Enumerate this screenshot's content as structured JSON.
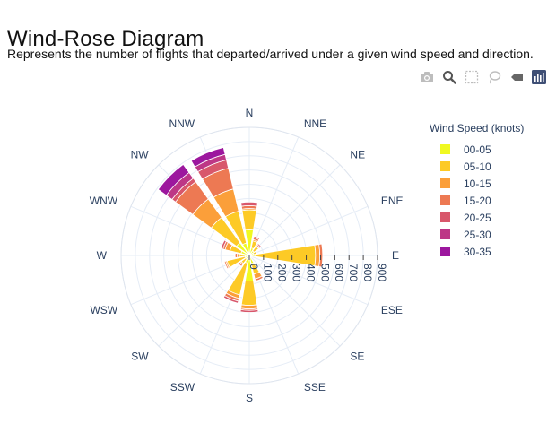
{
  "page": {
    "title": "Wind-Rose Diagram",
    "subtitle": "Represents the number of flights that departed/arrived under a given wind speed and direction."
  },
  "modebar": {
    "buttons": [
      {
        "icon": "camera-icon",
        "active": false
      },
      {
        "icon": "zoom-icon",
        "active": false
      },
      {
        "icon": "box-select-icon",
        "active": false
      },
      {
        "icon": "lasso-icon",
        "active": false
      },
      {
        "icon": "eraser-icon",
        "active": false
      },
      {
        "icon": "plotly-logo-icon",
        "active": true
      }
    ]
  },
  "chart_data": {
    "type": "barpolar",
    "directions": [
      "N",
      "NNE",
      "NE",
      "ENE",
      "E",
      "ESE",
      "SE",
      "SSE",
      "S",
      "SSW",
      "SW",
      "WSW",
      "W",
      "WNW",
      "NW",
      "NNW"
    ],
    "radial_ticks": [
      0,
      100,
      200,
      300,
      400,
      500,
      600,
      700,
      800,
      900
    ],
    "radial_range": [
      0,
      900
    ],
    "legend_title": "Wind Speed (knots)",
    "series": [
      {
        "name": "00-05",
        "color": "#f0f921",
        "values": [
          180,
          55,
          40,
          30,
          45,
          15,
          10,
          60,
          180,
          55,
          30,
          30,
          30,
          60,
          110,
          90
        ]
      },
      {
        "name": "05-10",
        "color": "#fdca26",
        "values": [
          140,
          50,
          40,
          25,
          420,
          10,
          10,
          75,
          170,
          230,
          40,
          130,
          40,
          80,
          220,
          230
        ]
      },
      {
        "name": "10-15",
        "color": "#fb9f3a",
        "values": [
          10,
          10,
          5,
          0,
          30,
          0,
          0,
          35,
          25,
          25,
          10,
          10,
          15,
          35,
          160,
          160
        ]
      },
      {
        "name": "15-20",
        "color": "#ed7953",
        "values": [
          20,
          15,
          10,
          0,
          20,
          0,
          0,
          15,
          10,
          20,
          15,
          10,
          15,
          15,
          150,
          150
        ]
      },
      {
        "name": "20-25",
        "color": "#d8576b",
        "values": [
          25,
          10,
          10,
          0,
          0,
          0,
          0,
          5,
          15,
          15,
          5,
          0,
          5,
          15,
          30,
          60
        ]
      },
      {
        "name": "25-30",
        "color": "#bd3786",
        "values": [
          0,
          0,
          0,
          0,
          0,
          0,
          0,
          0,
          0,
          0,
          0,
          0,
          0,
          0,
          50,
          40
        ]
      },
      {
        "name": "30-35",
        "color": "#9c179e",
        "values": [
          0,
          0,
          0,
          0,
          0,
          0,
          0,
          0,
          0,
          0,
          0,
          0,
          0,
          0,
          70,
          50
        ]
      }
    ]
  }
}
